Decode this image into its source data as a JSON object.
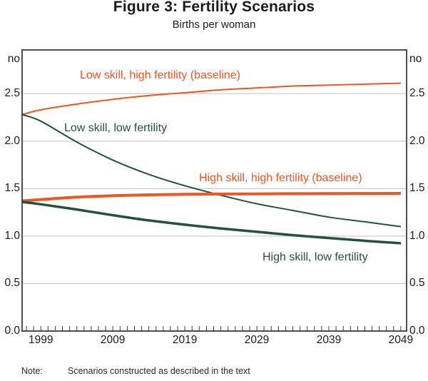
{
  "chart_data": {
    "type": "line",
    "title": "Figure 3: Fertility Scenarios",
    "subtitle": "Births per woman",
    "x_axis": {
      "min": 1996.4,
      "max": 2049.8,
      "tick_years": [
        1999,
        2009,
        2019,
        2029,
        2039,
        2049
      ],
      "tick_labels": [
        "1999",
        "2009",
        "2019",
        "2029",
        "2039",
        "2049"
      ],
      "minor_tick_start": 1997,
      "minor_tick_end": 2049,
      "minor_tick_step": 1
    },
    "y_axis": {
      "min": 0,
      "max": 2.96,
      "unit": "no",
      "tick_values": [
        0,
        0.5,
        1,
        1.5,
        2,
        2.5
      ],
      "tick_labels": [
        "0.0",
        "0.5",
        "1.0",
        "1.5",
        "2.0",
        "2.5"
      ],
      "gridline_values": [
        0.5,
        1,
        1.5,
        2,
        2.5
      ],
      "labels_both_sides": true,
      "grid": true
    },
    "colors": {
      "orange": "#ee5624",
      "dark_green": "#24523c",
      "gridline": "#c7c7c7",
      "axis": "#3c3c3c",
      "text": "#1c1c1c"
    },
    "legend_position": "inline-labels",
    "series": [
      {
        "id": "low-skill-high-fertility-baseline",
        "label": "Low skill, high fertility (baseline)",
        "color": "#ee5624",
        "line_width": 2,
        "x": [
          1996.4,
          1999,
          2004,
          2009,
          2014,
          2019,
          2024,
          2029,
          2034,
          2039,
          2044,
          2049
        ],
        "y": [
          2.28,
          2.33,
          2.39,
          2.44,
          2.48,
          2.51,
          2.54,
          2.56,
          2.58,
          2.59,
          2.6,
          2.61
        ]
      },
      {
        "id": "low-skill-low-fertility",
        "label": "Low skill, low fertility",
        "color": "#24523c",
        "line_width": 2,
        "x": [
          1996.4,
          1999,
          2004,
          2009,
          2014,
          2019,
          2024,
          2029,
          2034,
          2039,
          2044,
          2049
        ],
        "y": [
          2.28,
          2.21,
          1.99,
          1.8,
          1.65,
          1.53,
          1.43,
          1.34,
          1.27,
          1.2,
          1.15,
          1.1
        ]
      },
      {
        "id": "high-skill-high-fertility-baseline",
        "label": "High skill, high fertility (baseline)",
        "color": "#ee5624",
        "line_width": 4,
        "x": [
          1996.4,
          1999,
          2004,
          2009,
          2014,
          2019,
          2024,
          2029,
          2034,
          2039,
          2044,
          2049
        ],
        "y": [
          1.37,
          1.385,
          1.41,
          1.425,
          1.435,
          1.44,
          1.443,
          1.445,
          1.447,
          1.448,
          1.449,
          1.45
        ]
      },
      {
        "id": "high-skill-low-fertility",
        "label": "High skill, low fertility",
        "color": "#24523c",
        "line_width": 3.5,
        "x": [
          1996.4,
          1999,
          2004,
          2009,
          2014,
          2019,
          2024,
          2029,
          2034,
          2039,
          2044,
          2049
        ],
        "y": [
          1.36,
          1.335,
          1.28,
          1.22,
          1.165,
          1.12,
          1.08,
          1.045,
          1.01,
          0.98,
          0.95,
          0.925
        ]
      }
    ]
  },
  "footer": {
    "note_label": "Note:",
    "note_text": "Scenarios constructed as described in the text"
  }
}
